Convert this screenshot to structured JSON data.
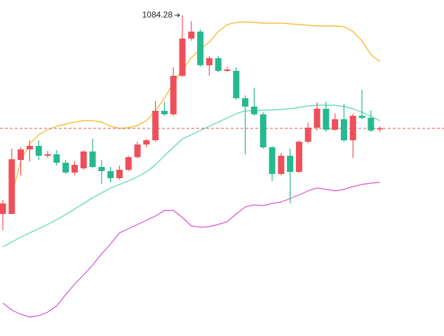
{
  "chart_data": {
    "type": "candlestick",
    "up_color": "#ef4f5a",
    "down_color": "#26b98f",
    "ylim": [
      627,
      1106
    ],
    "open": [
      801,
      801,
      878,
      893,
      898,
      884,
      886,
      874,
      860,
      866,
      890,
      868,
      862,
      852,
      864,
      882,
      900,
      906,
      948,
      943,
      998,
      1051,
      1061,
      1013,
      1023,
      1005,
      1005,
      966,
      954,
      943,
      896,
      858,
      884,
      861,
      904,
      924,
      951,
      921,
      936,
      906,
      941,
      938,
      922
    ],
    "high": [
      821,
      894,
      896,
      906,
      906,
      891,
      892,
      878,
      876,
      892,
      908,
      878,
      868,
      870,
      884,
      904,
      908,
      962,
      961,
      1010,
      1084.28,
      1076,
      1064,
      1026,
      1026,
      1011,
      1010,
      970,
      981,
      946,
      898,
      888,
      894,
      906,
      931,
      960,
      961,
      944,
      958,
      944,
      978,
      949,
      926
    ],
    "low": [
      778,
      801,
      856,
      876,
      878,
      881,
      870,
      858,
      856,
      864,
      866,
      844,
      846,
      850,
      862,
      880,
      896,
      904,
      941,
      941,
      996,
      1048,
      1011,
      998,
      1003,
      1003,
      964,
      886,
      941,
      894,
      848,
      856,
      816,
      860,
      902,
      920,
      918,
      920,
      904,
      881,
      936,
      918,
      918
    ],
    "close": [
      816,
      879,
      893,
      898,
      884,
      886,
      874,
      860,
      871,
      890,
      868,
      862,
      852,
      864,
      882,
      900,
      906,
      948,
      943,
      998,
      1051,
      1061,
      1013,
      1023,
      1005,
      1007,
      966,
      954,
      943,
      896,
      858,
      884,
      861,
      904,
      924,
      951,
      921,
      936,
      906,
      941,
      938,
      920,
      923
    ],
    "annotation_index": 20,
    "last_price_color": "#d9534f",
    "lines": [
      {
        "color": "#f5b31a",
        "values": [
          null,
          828,
          876,
          901,
          914,
          921,
          926,
          929,
          932,
          934,
          934,
          932,
          926,
          923,
          924,
          927,
          934,
          948,
          966,
          988,
          1006,
          1024,
          1036,
          1046,
          1061,
          1071,
          1074,
          1075,
          1074,
          1073,
          1073,
          1073,
          1072,
          1071,
          1070,
          1069,
          1069,
          1069,
          1068,
          1061,
          1048,
          1028,
          1018
        ]
      },
      {
        "color": "#4fd6b0",
        "values": [
          754,
          761,
          768,
          774,
          780,
          786,
          793,
          800,
          808,
          816,
          824,
          831,
          838,
          843,
          848,
          854,
          861,
          871,
          884,
          896,
          908,
          914,
          920,
          926,
          932,
          938,
          944,
          948,
          948,
          949,
          949,
          950,
          951,
          953,
          955,
          956,
          956,
          956,
          954,
          951,
          946,
          940,
          934
        ]
      },
      {
        "color": "#d94fd0",
        "values": [
          674,
          664,
          658,
          654,
          656,
          661,
          670,
          686,
          701,
          714,
          728,
          744,
          758,
          774,
          780,
          786,
          792,
          798,
          806,
          806,
          796,
          784,
          782,
          783,
          786,
          790,
          801,
          811,
          814,
          813,
          816,
          818,
          823,
          828,
          834,
          838,
          836,
          834,
          836,
          840,
          843,
          845,
          846
        ]
      }
    ]
  }
}
